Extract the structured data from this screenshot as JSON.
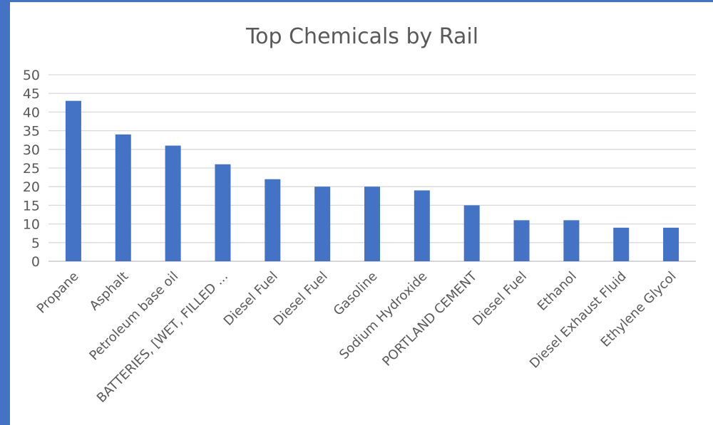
{
  "chart_data": {
    "type": "bar",
    "title": "Top Chemicals by Rail",
    "xlabel": "",
    "ylabel": "",
    "categories": [
      "Propane",
      "Asphalt",
      "Petroleum base oil",
      "BATTERIES, [WET, FILLED ...",
      "Diesel Fuel",
      "Diesel Fuel",
      "Gasoline",
      "Sodium Hydroxide",
      "PORTLAND CEMENT",
      "Diesel Fuel",
      "Ethanol",
      "Diesel Exhaust Fluid",
      "Ethylene Glycol"
    ],
    "values": [
      43,
      34,
      31,
      26,
      22,
      20,
      20,
      19,
      15,
      11,
      11,
      9,
      9
    ],
    "ylim": [
      0,
      50
    ],
    "yticks": [
      0,
      5,
      10,
      15,
      20,
      25,
      30,
      35,
      40,
      45,
      50
    ],
    "grid": true,
    "legend": "none",
    "bar_color": "#4472c4"
  }
}
